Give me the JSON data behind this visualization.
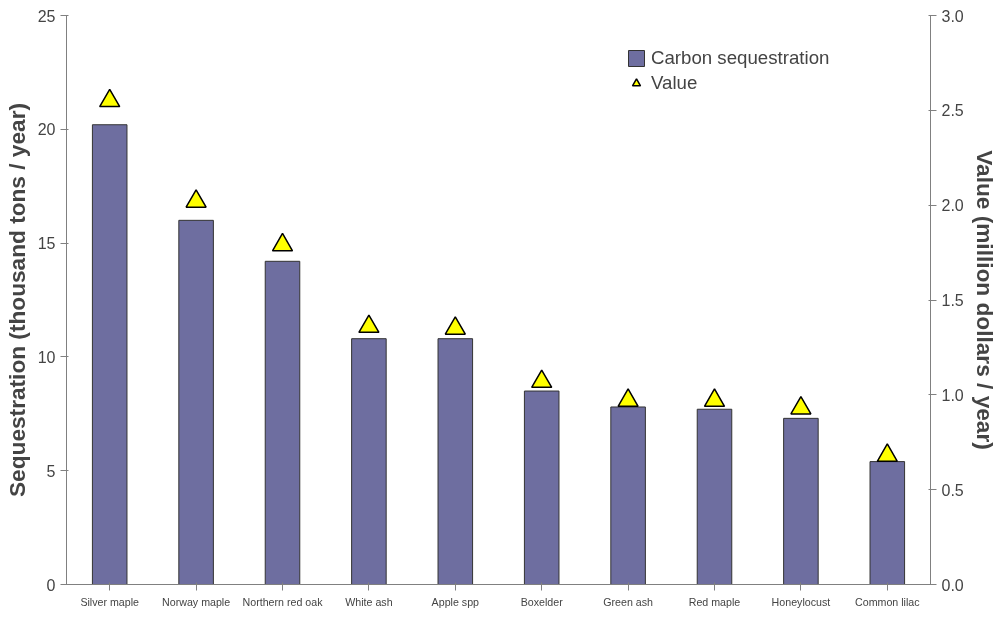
{
  "chart_data": {
    "type": "bar",
    "categories": [
      "Silver maple",
      "Norway maple",
      "Northern red oak",
      "White ash",
      "Apple spp",
      "Boxelder",
      "Green ash",
      "Red maple",
      "Honeylocust",
      "Common lilac"
    ],
    "ylabel": "Sequestration (thousand tons / year)",
    "y2label": "Value (million dollars / year)",
    "series": [
      {
        "name": "Carbon sequestration",
        "color": "#6e6ea0",
        "values": [
          20.2,
          16.0,
          14.2,
          10.8,
          10.8,
          8.5,
          7.8,
          7.7,
          7.3,
          5.4
        ]
      },
      {
        "name": "Value",
        "type": "scatter",
        "axis": "y2",
        "color": "#ffff00",
        "marker": "triangle",
        "values": [
          2.55,
          2.02,
          1.79,
          1.36,
          1.35,
          1.07,
          0.97,
          0.97,
          0.93,
          0.68
        ]
      }
    ],
    "ylim": [
      0,
      25
    ],
    "yticks": [
      0,
      5,
      10,
      15,
      20,
      25
    ],
    "y2lim": [
      0,
      3
    ],
    "y2ticks": [
      {
        "value": 0,
        "label": "0.0"
      },
      {
        "value": 0.5,
        "label": "0.5"
      },
      {
        "value": 1,
        "label": "1.0"
      },
      {
        "value": 1.5,
        "label": "1.5"
      },
      {
        "value": 2,
        "label": "2.0"
      },
      {
        "value": 2.5,
        "label": "2.5"
      },
      {
        "value": 3,
        "label": "3.0"
      }
    ],
    "grid": false,
    "legend": "top"
  }
}
